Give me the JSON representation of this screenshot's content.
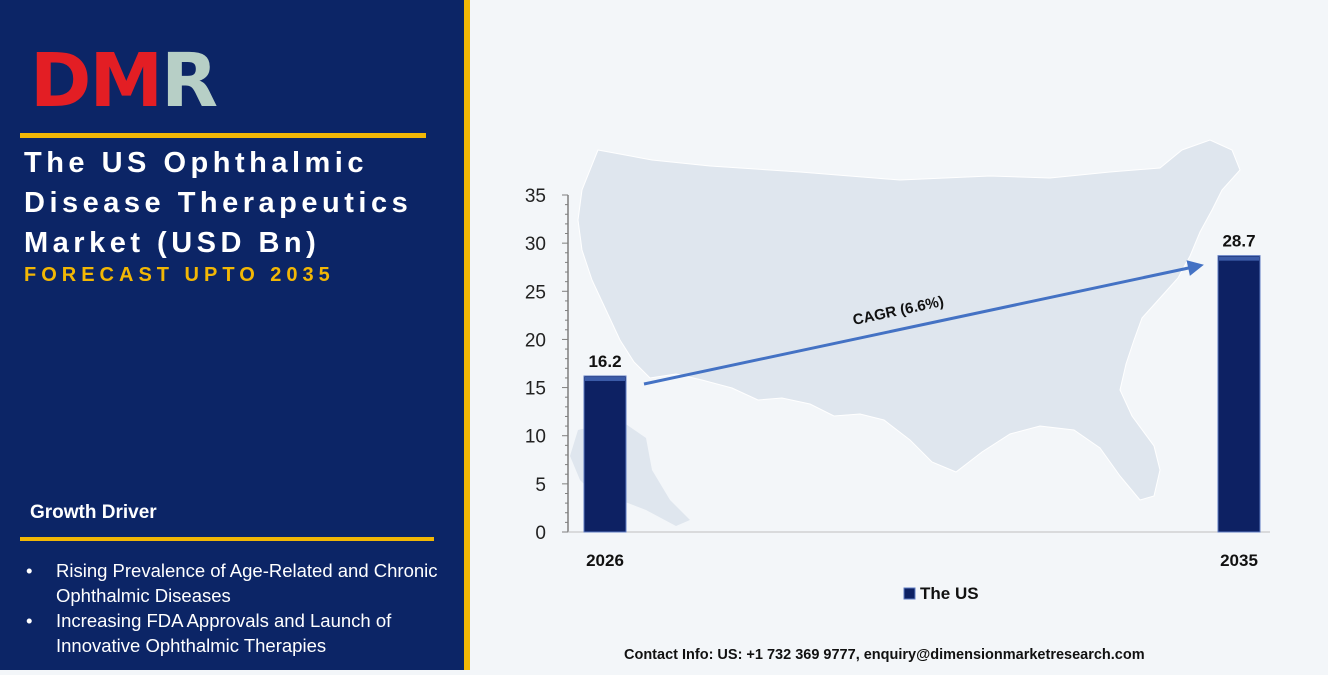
{
  "logo": {
    "text_d": "D",
    "text_m": "M",
    "text_r": "R",
    "colors": {
      "d": "#e31e24",
      "m": "#e31e24",
      "r": "#b7cfc6"
    }
  },
  "title": "The US Ophthalmic Disease Therapeutics Market (USD Bn)",
  "subtitle": "FORECAST UPTO 2035",
  "growth_driver": {
    "heading": "Growth Driver",
    "items": [
      "Rising Prevalence of Age-Related and Chronic Ophthalmic Diseases",
      "Increasing FDA Approvals and Launch of Innovative Ophthalmic Therapies"
    ]
  },
  "contact": "Contact Info: US: +1 732 369 9777, enquiry@dimensionmarketresearch.com",
  "colors": {
    "navy": "#0c2566",
    "gold": "#f2b705",
    "bar": "#0d2163",
    "arrow": "#4472c4",
    "map": "#dfe6ee"
  },
  "chart_data": {
    "type": "bar",
    "categories": [
      "2026",
      "2035"
    ],
    "series": [
      {
        "name": "The US",
        "values": [
          16.2,
          28.7
        ]
      }
    ],
    "data_labels": [
      "16.2",
      "28.7"
    ],
    "ylim": [
      0,
      35
    ],
    "y_ticks": [
      "0",
      "5",
      "10",
      "15",
      "20",
      "25",
      "30",
      "35"
    ],
    "annotation": "CAGR (6.6%)",
    "legend_position": "bottom",
    "grid": false
  }
}
